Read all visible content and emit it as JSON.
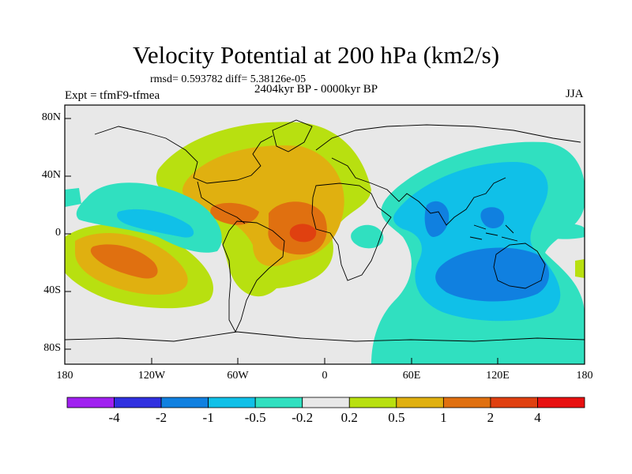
{
  "title": "Velocity Potential at 200 hPa (km2/s)",
  "stats": "rmsd= 0.593782 diff= 5.38126e-05",
  "experiment": "Expt = tfmF9-tfmea",
  "period": "2404kyr BP - 0000kyr BP",
  "season": "JJA",
  "lat_labels": [
    "80N",
    "40N",
    "0",
    "40S",
    "80S"
  ],
  "lon_labels": [
    "180",
    "120W",
    "60W",
    "0",
    "60E",
    "120E",
    "180"
  ],
  "colorbar": {
    "colors": [
      "#a020f0",
      "#3030e0",
      "#1080e0",
      "#10c0e8",
      "#30e0c0",
      "#e8e8e8",
      "#b8e010",
      "#e0b010",
      "#e07010",
      "#e04010",
      "#e81010"
    ],
    "labels": [
      "-4",
      "-2",
      "-1",
      "-0.5",
      "-0.2",
      "0.2",
      "0.5",
      "1",
      "2",
      "4"
    ]
  },
  "field_colors": {
    "neutral": "#e8e8e8",
    "neg1": "#30e0c0",
    "neg2": "#10c0e8",
    "neg3": "#1080e0",
    "pos1": "#b8e010",
    "pos2": "#e0b010",
    "pos3": "#e07010",
    "pos4": "#e04010"
  }
}
